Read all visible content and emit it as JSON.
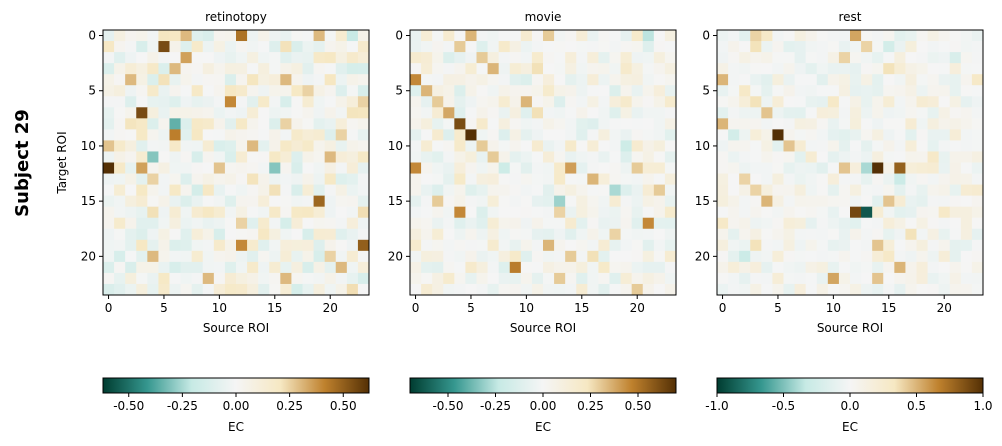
{
  "figure": {
    "row_label": "Subject 29",
    "ylabel": "Target ROI",
    "xlabel": "Source ROI",
    "colorbar_label": "EC",
    "colormap": [
      "#003c30",
      "#35978f",
      "#c7eae5",
      "#f5f5f5",
      "#f6e8c3",
      "#bf812d",
      "#543005"
    ]
  },
  "chart_data": [
    {
      "type": "heatmap",
      "title": "retinotopy",
      "xlabel": "Source ROI",
      "ylabel": "Target ROI",
      "n": 24,
      "xticks": [
        "0",
        "5",
        "10",
        "15",
        "20"
      ],
      "yticks": [
        "0",
        "5",
        "10",
        "15",
        "20"
      ],
      "vmin": -0.62,
      "vmax": 0.62,
      "colorbar_ticks": [
        "-0.50",
        "-0.25",
        "0.00",
        "0.25",
        "0.50"
      ],
      "colorbar_tick_values": [
        -0.5,
        -0.25,
        0.0,
        0.25,
        0.5
      ],
      "colorbar_label": "EC",
      "seed": 29,
      "noise": 0.2,
      "strong": [
        [
          0,
          12,
          0.45
        ],
        [
          0,
          19,
          0.3
        ],
        [
          1,
          5,
          0.55
        ],
        [
          2,
          7,
          0.35
        ],
        [
          4,
          2,
          0.3
        ],
        [
          6,
          11,
          0.4
        ],
        [
          7,
          3,
          0.55
        ],
        [
          8,
          16,
          0.25
        ],
        [
          9,
          6,
          0.42
        ],
        [
          10,
          13,
          0.3
        ],
        [
          11,
          20,
          0.3
        ],
        [
          12,
          0,
          0.62
        ],
        [
          12,
          3,
          0.35
        ],
        [
          12,
          10,
          0.28
        ],
        [
          13,
          4,
          0.25
        ],
        [
          15,
          19,
          0.48
        ],
        [
          17,
          12,
          0.25
        ],
        [
          19,
          12,
          0.4
        ],
        [
          20,
          4,
          0.3
        ],
        [
          21,
          21,
          0.3
        ],
        [
          19,
          23,
          0.5
        ],
        [
          22,
          9,
          0.3
        ],
        [
          22,
          16,
          0.3
        ],
        [
          4,
          16,
          0.3
        ],
        [
          3,
          6,
          0.3
        ],
        [
          9,
          21,
          0.25
        ],
        [
          6,
          23,
          0.25
        ],
        [
          20,
          20,
          0.25
        ],
        [
          0,
          7,
          0.3
        ],
        [
          10,
          0,
          0.28
        ],
        [
          5,
          18,
          0.25
        ],
        [
          14,
          15,
          0.22
        ]
      ],
      "neg": [
        [
          8,
          6,
          -0.35
        ],
        [
          12,
          15,
          -0.3
        ],
        [
          11,
          4,
          -0.3
        ],
        [
          0,
          22,
          -0.2
        ],
        [
          14,
          8,
          -0.15
        ]
      ]
    },
    {
      "type": "heatmap",
      "title": "movie",
      "xlabel": "Source ROI",
      "ylabel": "",
      "n": 24,
      "xticks": [
        "0",
        "5",
        "10",
        "15",
        "20"
      ],
      "yticks": [
        "0",
        "5",
        "10",
        "15",
        "20"
      ],
      "vmin": -0.7,
      "vmax": 0.7,
      "colorbar_ticks": [
        "-0.50",
        "-0.25",
        "0.00",
        "0.25",
        "0.50"
      ],
      "colorbar_tick_values": [
        -0.5,
        -0.25,
        0.0,
        0.25,
        0.5
      ],
      "colorbar_label": "EC",
      "seed": 57,
      "noise": 0.18,
      "strong": [
        [
          0,
          12,
          0.3
        ],
        [
          0,
          5,
          0.35
        ],
        [
          1,
          4,
          0.3
        ],
        [
          2,
          6,
          0.3
        ],
        [
          3,
          7,
          0.35
        ],
        [
          4,
          0,
          0.45
        ],
        [
          5,
          1,
          0.35
        ],
        [
          6,
          2,
          0.3
        ],
        [
          6,
          10,
          0.35
        ],
        [
          7,
          3,
          0.38
        ],
        [
          8,
          4,
          0.62
        ],
        [
          9,
          5,
          0.7
        ],
        [
          10,
          6,
          0.3
        ],
        [
          11,
          7,
          0.3
        ],
        [
          12,
          0,
          0.45
        ],
        [
          12,
          14,
          0.4
        ],
        [
          12,
          20,
          0.3
        ],
        [
          13,
          16,
          0.35
        ],
        [
          15,
          2,
          0.3
        ],
        [
          16,
          4,
          0.45
        ],
        [
          16,
          13,
          0.28
        ],
        [
          17,
          21,
          0.45
        ],
        [
          19,
          12,
          0.35
        ],
        [
          20,
          14,
          0.3
        ],
        [
          21,
          9,
          0.48
        ],
        [
          22,
          13,
          0.3
        ],
        [
          20,
          16,
          0.25
        ],
        [
          23,
          20,
          0.3
        ],
        [
          3,
          11,
          0.25
        ],
        [
          14,
          22,
          0.3
        ],
        [
          18,
          18,
          0.28
        ],
        [
          7,
          11,
          0.25
        ]
      ],
      "neg": [
        [
          15,
          13,
          -0.3
        ],
        [
          14,
          18,
          -0.28
        ],
        [
          0,
          21,
          -0.25
        ],
        [
          12,
          8,
          -0.2
        ],
        [
          10,
          19,
          -0.2
        ]
      ]
    },
    {
      "type": "heatmap",
      "title": "rest",
      "xlabel": "Source ROI",
      "ylabel": "",
      "n": 24,
      "xticks": [
        "0",
        "5",
        "10",
        "15",
        "20"
      ],
      "yticks": [
        "0",
        "5",
        "10",
        "15",
        "20"
      ],
      "vmin": -1.0,
      "vmax": 1.0,
      "colorbar_ticks": [
        "-1.0",
        "-0.5",
        "0.0",
        "0.5",
        "1.0"
      ],
      "colorbar_tick_values": [
        -1.0,
        -0.5,
        0.0,
        0.5,
        1.0
      ],
      "colorbar_label": "EC",
      "seed": 91,
      "noise": 0.2,
      "strong": [
        [
          0,
          3,
          0.4
        ],
        [
          0,
          4,
          0.3
        ],
        [
          0,
          12,
          0.55
        ],
        [
          1,
          3,
          0.35
        ],
        [
          1,
          13,
          0.4
        ],
        [
          2,
          11,
          0.4
        ],
        [
          3,
          15,
          0.35
        ],
        [
          4,
          0,
          0.5
        ],
        [
          5,
          2,
          0.3
        ],
        [
          6,
          3,
          0.35
        ],
        [
          6,
          10,
          0.3
        ],
        [
          7,
          4,
          0.45
        ],
        [
          8,
          0,
          0.5
        ],
        [
          9,
          5,
          1.0
        ],
        [
          10,
          6,
          0.45
        ],
        [
          12,
          14,
          1.0
        ],
        [
          12,
          16,
          0.8
        ],
        [
          12,
          11,
          0.45
        ],
        [
          13,
          2,
          0.4
        ],
        [
          14,
          3,
          0.4
        ],
        [
          15,
          4,
          0.5
        ],
        [
          16,
          12,
          0.9
        ],
        [
          15,
          15,
          0.45
        ],
        [
          17,
          0,
          0.3
        ],
        [
          18,
          17,
          0.35
        ],
        [
          19,
          14,
          0.45
        ],
        [
          20,
          15,
          0.3
        ],
        [
          21,
          16,
          0.5
        ],
        [
          22,
          10,
          0.55
        ],
        [
          22,
          14,
          0.45
        ],
        [
          19,
          3,
          0.35
        ],
        [
          4,
          23,
          0.3
        ],
        [
          11,
          19,
          0.3
        ],
        [
          16,
          20,
          0.3
        ],
        [
          14,
          23,
          0.25
        ]
      ],
      "neg": [
        [
          16,
          13,
          -0.9
        ],
        [
          12,
          13,
          -0.4
        ],
        [
          13,
          16,
          -0.3
        ],
        [
          20,
          2,
          -0.3
        ],
        [
          9,
          1,
          -0.25
        ],
        [
          1,
          15,
          -0.25
        ],
        [
          2,
          21,
          -0.2
        ]
      ]
    }
  ]
}
